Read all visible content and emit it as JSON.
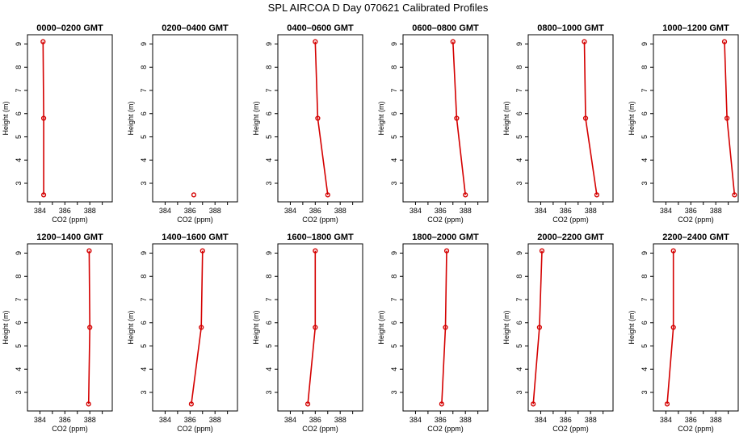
{
  "title": "SPL AIRCOA D  Day 070621  Calibrated Profiles",
  "colors": {
    "series": "#d40000",
    "axes": "#000000"
  },
  "chart_data": {
    "type": "line",
    "layout": "2x6 grid of profile panels",
    "xlabel": "CO2 (ppm)",
    "ylabel": "Height (m)",
    "xlim": [
      383,
      389.8
    ],
    "ylim": [
      2.2,
      9.4
    ],
    "xticks": [
      384,
      386,
      388
    ],
    "xtick_labels": [
      "384",
      "386",
      "388"
    ],
    "yticks": [
      3,
      4,
      5,
      6,
      7,
      8,
      9
    ],
    "ytick_labels": [
      "3",
      "4",
      "5",
      "6",
      "7",
      "8",
      "9"
    ],
    "grid": false,
    "panels": [
      {
        "title": "0000–0200 GMT",
        "points": [
          {
            "x": 384.3,
            "y": 2.5
          },
          {
            "x": 384.3,
            "y": 5.8
          },
          {
            "x": 384.25,
            "y": 9.1
          }
        ]
      },
      {
        "title": "0200–0400 GMT",
        "points": [
          {
            "x": 386.3,
            "y": 2.5
          }
        ]
      },
      {
        "title": "0400–0600 GMT",
        "points": [
          {
            "x": 387.0,
            "y": 2.5
          },
          {
            "x": 386.2,
            "y": 5.8
          },
          {
            "x": 386.0,
            "y": 9.1
          }
        ]
      },
      {
        "title": "0600–0800 GMT",
        "points": [
          {
            "x": 388.0,
            "y": 2.5
          },
          {
            "x": 387.3,
            "y": 5.8
          },
          {
            "x": 387.0,
            "y": 9.1
          }
        ]
      },
      {
        "title": "0800–1000 GMT",
        "points": [
          {
            "x": 388.5,
            "y": 2.5
          },
          {
            "x": 387.6,
            "y": 5.8
          },
          {
            "x": 387.5,
            "y": 9.1
          }
        ]
      },
      {
        "title": "1000–1200 GMT",
        "points": [
          {
            "x": 389.5,
            "y": 2.5
          },
          {
            "x": 388.9,
            "y": 5.8
          },
          {
            "x": 388.7,
            "y": 9.1
          }
        ]
      },
      {
        "title": "1200–1400 GMT",
        "points": [
          {
            "x": 387.9,
            "y": 2.5
          },
          {
            "x": 388.0,
            "y": 5.8
          },
          {
            "x": 387.95,
            "y": 9.1
          }
        ]
      },
      {
        "title": "1400–1600 GMT",
        "points": [
          {
            "x": 386.1,
            "y": 2.5
          },
          {
            "x": 386.9,
            "y": 5.8
          },
          {
            "x": 387.0,
            "y": 9.1
          }
        ]
      },
      {
        "title": "1600–1800 GMT",
        "points": [
          {
            "x": 385.4,
            "y": 2.5
          },
          {
            "x": 386.0,
            "y": 5.8
          },
          {
            "x": 386.0,
            "y": 9.1
          }
        ]
      },
      {
        "title": "1800–2000 GMT",
        "points": [
          {
            "x": 386.1,
            "y": 2.5
          },
          {
            "x": 386.4,
            "y": 5.8
          },
          {
            "x": 386.5,
            "y": 9.1
          }
        ]
      },
      {
        "title": "2000–2200 GMT",
        "points": [
          {
            "x": 383.4,
            "y": 2.5
          },
          {
            "x": 383.9,
            "y": 5.8
          },
          {
            "x": 384.1,
            "y": 9.1
          }
        ]
      },
      {
        "title": "2200–2400 GMT",
        "points": [
          {
            "x": 384.1,
            "y": 2.5
          },
          {
            "x": 384.6,
            "y": 5.8
          },
          {
            "x": 384.6,
            "y": 9.1
          }
        ]
      }
    ]
  }
}
